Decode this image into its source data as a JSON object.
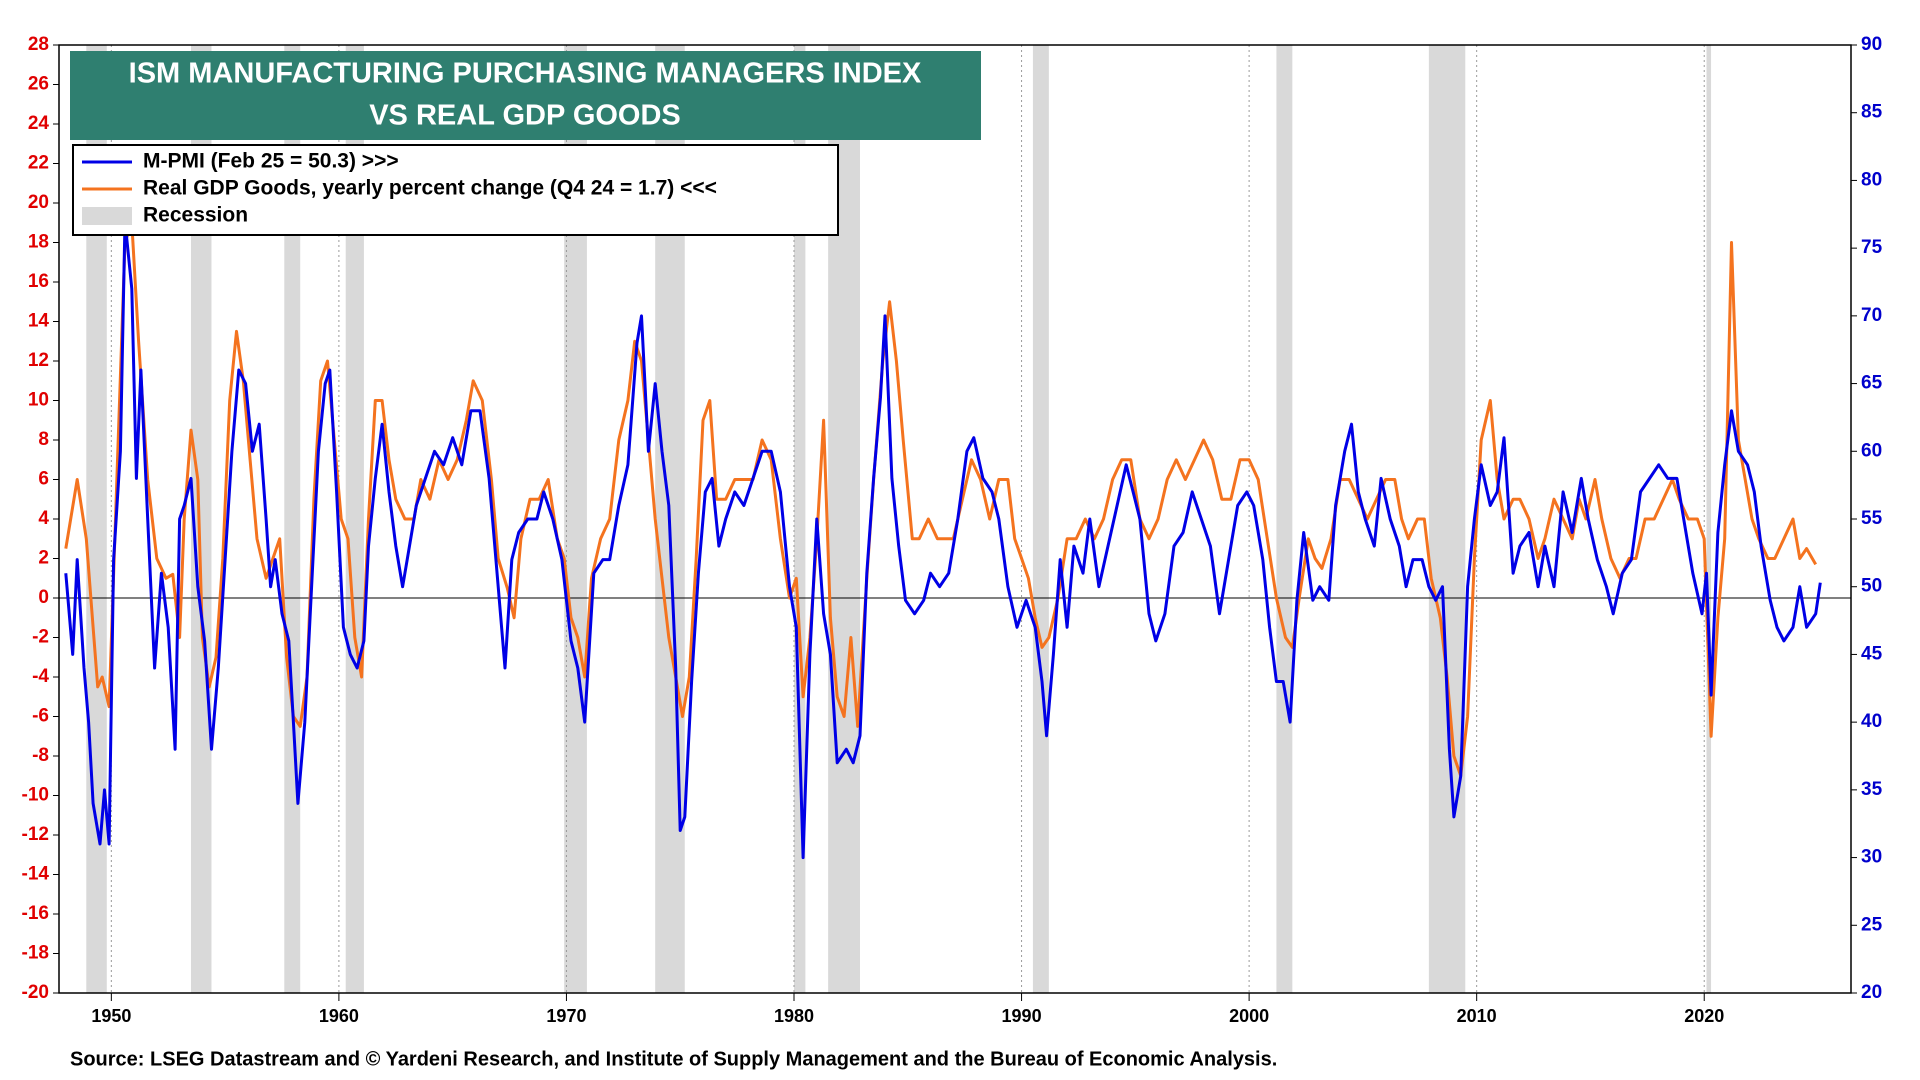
{
  "chart_data": {
    "type": "line",
    "title": [
      "ISM MANUFACTURING PURCHASING MANAGERS INDEX",
      "VS REAL GDP GOODS"
    ],
    "source": "Source: LSEG Datastream and © Yardeni Research, and Institute of Supply Management and the Bureau of Economic Analysis.",
    "xlim": [
      1947.7,
      2026.45
    ],
    "xticks": [
      1950,
      1960,
      1970,
      1980,
      1990,
      2000,
      2010,
      2020
    ],
    "ylim": [
      -20,
      28
    ],
    "yticks": [
      -20,
      -18,
      -16,
      -14,
      -12,
      -10,
      -8,
      -6,
      -4,
      -2,
      0,
      2,
      4,
      6,
      8,
      10,
      12,
      14,
      16,
      18,
      20,
      22,
      24,
      26,
      28
    ],
    "y2lim": [
      20,
      90
    ],
    "y2ticks": [
      20,
      25,
      30,
      35,
      40,
      45,
      50,
      55,
      60,
      65,
      70,
      75,
      80,
      85,
      90
    ],
    "grid": true,
    "hline": 0,
    "recessions": {
      "name": "Recession",
      "color": "#d9d9d9",
      "periods": [
        [
          1948.9,
          1949.8
        ],
        [
          1953.5,
          1954.4
        ],
        [
          1957.6,
          1958.3
        ],
        [
          1960.3,
          1961.1
        ],
        [
          1969.9,
          1970.9
        ],
        [
          1973.9,
          1975.2
        ],
        [
          1980.0,
          1980.5
        ],
        [
          1981.5,
          1982.9
        ],
        [
          1990.5,
          1991.2
        ],
        [
          2001.2,
          2001.9
        ],
        [
          2007.9,
          2009.5
        ],
        [
          2020.1,
          2020.3
        ]
      ]
    },
    "series": [
      {
        "name": "M-PMI (Feb 25 = 50.3) >>>",
        "color": "#0000e6",
        "axis": "y2",
        "x": [
          1948.0,
          1948.3,
          1948.5,
          1948.8,
          1949.0,
          1949.2,
          1949.5,
          1949.7,
          1949.9,
          1950.1,
          1950.4,
          1950.6,
          1950.9,
          1951.1,
          1951.3,
          1951.6,
          1951.9,
          1952.2,
          1952.5,
          1952.8,
          1953.0,
          1953.2,
          1953.5,
          1953.8,
          1954.1,
          1954.4,
          1954.7,
          1955.0,
          1955.3,
          1955.6,
          1955.9,
          1956.2,
          1956.5,
          1956.8,
          1957.0,
          1957.2,
          1957.5,
          1957.8,
          1958.0,
          1958.2,
          1958.5,
          1958.8,
          1959.1,
          1959.4,
          1959.6,
          1959.9,
          1960.2,
          1960.5,
          1960.8,
          1961.1,
          1961.3,
          1961.6,
          1961.9,
          1962.2,
          1962.5,
          1962.8,
          1963.0,
          1963.4,
          1963.8,
          1964.2,
          1964.6,
          1965.0,
          1965.4,
          1965.8,
          1966.2,
          1966.6,
          1967.0,
          1967.3,
          1967.6,
          1967.9,
          1968.3,
          1968.7,
          1969.0,
          1969.4,
          1969.8,
          1970.2,
          1970.5,
          1970.8,
          1971.2,
          1971.6,
          1971.9,
          1972.3,
          1972.7,
          1973.1,
          1973.3,
          1973.6,
          1973.9,
          1974.2,
          1974.5,
          1974.8,
          1975.0,
          1975.2,
          1975.5,
          1975.8,
          1976.1,
          1976.4,
          1976.7,
          1977.0,
          1977.4,
          1977.8,
          1978.2,
          1978.6,
          1979.0,
          1979.4,
          1979.8,
          1980.1,
          1980.4,
          1980.7,
          1981.0,
          1981.3,
          1981.6,
          1981.9,
          1982.3,
          1982.6,
          1982.9,
          1983.2,
          1983.5,
          1983.8,
          1984.0,
          1984.3,
          1984.6,
          1984.9,
          1985.3,
          1985.7,
          1986.0,
          1986.4,
          1986.8,
          1987.2,
          1987.6,
          1987.9,
          1988.3,
          1988.7,
          1989.0,
          1989.4,
          1989.8,
          1990.2,
          1990.6,
          1990.9,
          1991.1,
          1991.4,
          1991.7,
          1992.0,
          1992.3,
          1992.7,
          1993.0,
          1993.4,
          1993.8,
          1994.2,
          1994.6,
          1994.9,
          1995.2,
          1995.6,
          1995.9,
          1996.3,
          1996.7,
          1997.1,
          1997.5,
          1997.9,
          1998.3,
          1998.7,
          1999.1,
          1999.5,
          1999.9,
          2000.2,
          2000.6,
          2000.9,
          2001.2,
          2001.5,
          2001.8,
          2002.1,
          2002.4,
          2002.8,
          2003.1,
          2003.5,
          2003.8,
          2004.2,
          2004.5,
          2004.8,
          2005.1,
          2005.5,
          2005.8,
          2006.2,
          2006.6,
          2006.9,
          2007.2,
          2007.6,
          2007.9,
          2008.2,
          2008.5,
          2008.8,
          2009.0,
          2009.3,
          2009.6,
          2009.9,
          2010.2,
          2010.6,
          2010.9,
          2011.2,
          2011.6,
          2011.9,
          2012.3,
          2012.7,
          2013.0,
          2013.4,
          2013.8,
          2014.2,
          2014.6,
          2014.9,
          2015.3,
          2015.7,
          2016.0,
          2016.4,
          2016.8,
          2017.2,
          2017.6,
          2018.0,
          2018.4,
          2018.8,
          2019.1,
          2019.5,
          2019.9,
          2020.1,
          2020.3,
          2020.6,
          2020.9,
          2021.2,
          2021.5,
          2021.9,
          2022.2,
          2022.5,
          2022.9,
          2023.2,
          2023.5,
          2023.9,
          2024.2,
          2024.5,
          2024.9,
          2025.1
        ],
        "values": [
          51,
          45,
          52,
          44,
          40,
          34,
          31,
          35,
          31,
          52,
          60,
          77,
          72,
          58,
          66,
          55,
          44,
          51,
          47,
          38,
          55,
          56,
          58,
          50,
          46,
          38,
          44,
          52,
          60,
          66,
          65,
          60,
          62,
          55,
          50,
          52,
          48,
          46,
          40,
          34,
          40,
          50,
          60,
          65,
          66,
          57,
          47,
          45,
          44,
          46,
          53,
          58,
          62,
          57,
          53,
          50,
          52,
          56,
          58,
          60,
          59,
          61,
          59,
          63,
          63,
          58,
          50,
          44,
          52,
          54,
          55,
          55,
          57,
          55,
          52,
          46,
          44,
          40,
          51,
          52,
          52,
          56,
          59,
          68,
          70,
          60,
          65,
          60,
          56,
          44,
          32,
          33,
          43,
          51,
          57,
          58,
          53,
          55,
          57,
          56,
          58,
          60,
          60,
          57,
          50,
          47,
          30,
          45,
          55,
          48,
          45,
          37,
          38,
          37,
          39,
          51,
          58,
          64,
          70,
          58,
          53,
          49,
          48,
          49,
          51,
          50,
          51,
          55,
          60,
          61,
          58,
          57,
          55,
          50,
          47,
          49,
          47,
          43,
          39,
          45,
          52,
          47,
          53,
          51,
          55,
          50,
          53,
          56,
          59,
          57,
          55,
          48,
          46,
          48,
          53,
          54,
          57,
          55,
          53,
          48,
          52,
          56,
          57,
          56,
          52,
          47,
          43,
          43,
          40,
          49,
          54,
          49,
          50,
          49,
          56,
          60,
          62,
          57,
          55,
          53,
          58,
          55,
          53,
          50,
          52,
          52,
          50,
          49,
          50,
          38,
          33,
          36,
          50,
          55,
          59,
          56,
          57,
          61,
          51,
          53,
          54,
          50,
          53,
          50,
          57,
          54,
          58,
          55,
          52,
          50,
          48,
          51,
          52,
          57,
          58,
          59,
          58,
          58,
          55,
          51,
          48,
          51,
          42,
          54,
          59,
          63,
          60,
          59,
          57,
          53,
          49,
          47,
          46,
          47,
          50,
          47,
          48,
          50.3
        ]
      },
      {
        "name": "Real GDP Goods, yearly percent change (Q4 24 = 1.7) <<<",
        "color": "#f4731f",
        "axis": "y",
        "x": [
          1948.0,
          1948.5,
          1948.9,
          1949.4,
          1949.6,
          1949.9,
          1950.3,
          1950.6,
          1950.9,
          1951.2,
          1951.6,
          1952.0,
          1952.4,
          1952.7,
          1953.0,
          1953.2,
          1953.5,
          1953.8,
          1954.0,
          1954.3,
          1954.6,
          1954.9,
          1955.2,
          1955.5,
          1955.8,
          1956.1,
          1956.4,
          1956.8,
          1957.1,
          1957.4,
          1957.7,
          1958.0,
          1958.3,
          1958.6,
          1958.9,
          1959.2,
          1959.5,
          1959.8,
          1960.1,
          1960.4,
          1960.7,
          1961.0,
          1961.3,
          1961.6,
          1961.9,
          1962.2,
          1962.5,
          1962.9,
          1963.3,
          1963.6,
          1964.0,
          1964.4,
          1964.8,
          1965.2,
          1965.6,
          1965.9,
          1966.3,
          1966.7,
          1967.0,
          1967.4,
          1967.7,
          1968.0,
          1968.4,
          1968.8,
          1969.2,
          1969.6,
          1969.9,
          1970.2,
          1970.5,
          1970.8,
          1971.1,
          1971.5,
          1971.9,
          1972.3,
          1972.7,
          1973.0,
          1973.3,
          1973.6,
          1973.9,
          1974.2,
          1974.5,
          1974.8,
          1975.1,
          1975.4,
          1975.7,
          1976.0,
          1976.3,
          1976.6,
          1977.0,
          1977.4,
          1977.8,
          1978.2,
          1978.6,
          1979.0,
          1979.4,
          1979.8,
          1980.1,
          1980.4,
          1980.7,
          1981.0,
          1981.3,
          1981.6,
          1981.9,
          1982.2,
          1982.5,
          1982.8,
          1983.2,
          1983.5,
          1983.9,
          1984.2,
          1984.5,
          1984.8,
          1985.2,
          1985.5,
          1985.9,
          1986.3,
          1986.7,
          1987.0,
          1987.4,
          1987.8,
          1988.2,
          1988.6,
          1989.0,
          1989.4,
          1989.7,
          1990.0,
          1990.3,
          1990.6,
          1990.9,
          1991.2,
          1991.6,
          1992.0,
          1992.4,
          1992.8,
          1993.2,
          1993.6,
          1994.0,
          1994.4,
          1994.8,
          1995.2,
          1995.6,
          1996.0,
          1996.4,
          1996.8,
          1997.2,
          1997.6,
          1998.0,
          1998.4,
          1998.8,
          1999.2,
          1999.6,
          2000.0,
          2000.4,
          2000.8,
          2001.2,
          2001.6,
          2001.9,
          2002.2,
          2002.6,
          2002.9,
          2003.2,
          2003.6,
          2004.0,
          2004.4,
          2004.8,
          2005.2,
          2005.6,
          2006.0,
          2006.4,
          2006.7,
          2007.0,
          2007.4,
          2007.7,
          2008.0,
          2008.4,
          2008.7,
          2009.0,
          2009.3,
          2009.6,
          2009.9,
          2010.2,
          2010.6,
          2010.9,
          2011.2,
          2011.6,
          2011.9,
          2012.3,
          2012.7,
          2013.0,
          2013.4,
          2013.8,
          2014.2,
          2014.5,
          2014.8,
          2015.2,
          2015.5,
          2015.9,
          2016.3,
          2016.7,
          2017.0,
          2017.4,
          2017.8,
          2018.2,
          2018.6,
          2018.9,
          2019.3,
          2019.7,
          2020.0,
          2020.3,
          2020.6,
          2020.9,
          2021.2,
          2021.5,
          2021.8,
          2022.1,
          2022.4,
          2022.8,
          2023.1,
          2023.5,
          2023.9,
          2024.2,
          2024.5,
          2024.9
        ],
        "values": [
          2.5,
          6,
          3,
          -4.5,
          -4,
          -5.5,
          8,
          18,
          19,
          13,
          6,
          2,
          1,
          1.2,
          -2,
          4,
          8.5,
          6,
          -2,
          -4.5,
          -3,
          2,
          10,
          13.5,
          11,
          7,
          3,
          1,
          2,
          3,
          -3,
          -6,
          -6.5,
          -4,
          5,
          11,
          12,
          8,
          4,
          3,
          -2,
          -4,
          4,
          10,
          10,
          7,
          5,
          4,
          4,
          6,
          5,
          7,
          6,
          7,
          9,
          11,
          10,
          6,
          2,
          0.5,
          -1,
          3,
          5,
          5,
          6,
          3,
          2,
          -1,
          -2,
          -4,
          1,
          3,
          4,
          8,
          10,
          13,
          12,
          8,
          4,
          1,
          -2,
          -4,
          -6,
          -4,
          2,
          9,
          10,
          5,
          5,
          6,
          6,
          6,
          8,
          7,
          3,
          0,
          1,
          -5,
          -2,
          3,
          9,
          -1,
          -5,
          -6,
          -2,
          -6.5,
          1,
          6,
          12,
          15,
          12,
          8,
          3,
          3,
          4,
          3,
          3,
          3,
          5,
          7,
          6,
          4,
          6,
          6,
          3,
          2,
          1,
          -1,
          -2.5,
          -2,
          0,
          3,
          3,
          4,
          3,
          4,
          6,
          7,
          7,
          4,
          3,
          4,
          6,
          7,
          6,
          7,
          8,
          7,
          5,
          5,
          7,
          7,
          6,
          3,
          0,
          -2,
          -2.5,
          0,
          3,
          2,
          1.5,
          3,
          6,
          6,
          5,
          4,
          5,
          6,
          6,
          4,
          3,
          4,
          4,
          1,
          -1,
          -4,
          -8,
          -9,
          -6,
          2,
          8,
          10,
          6,
          4,
          5,
          5,
          4,
          2,
          3,
          5,
          4,
          3,
          5,
          4,
          6,
          4,
          2,
          1,
          2,
          2,
          4,
          4,
          5,
          6,
          5,
          4,
          4,
          3,
          -7,
          -1,
          3,
          18,
          8,
          6,
          4,
          3,
          2,
          2,
          3,
          4,
          2,
          2.5,
          1.7
        ]
      }
    ]
  }
}
